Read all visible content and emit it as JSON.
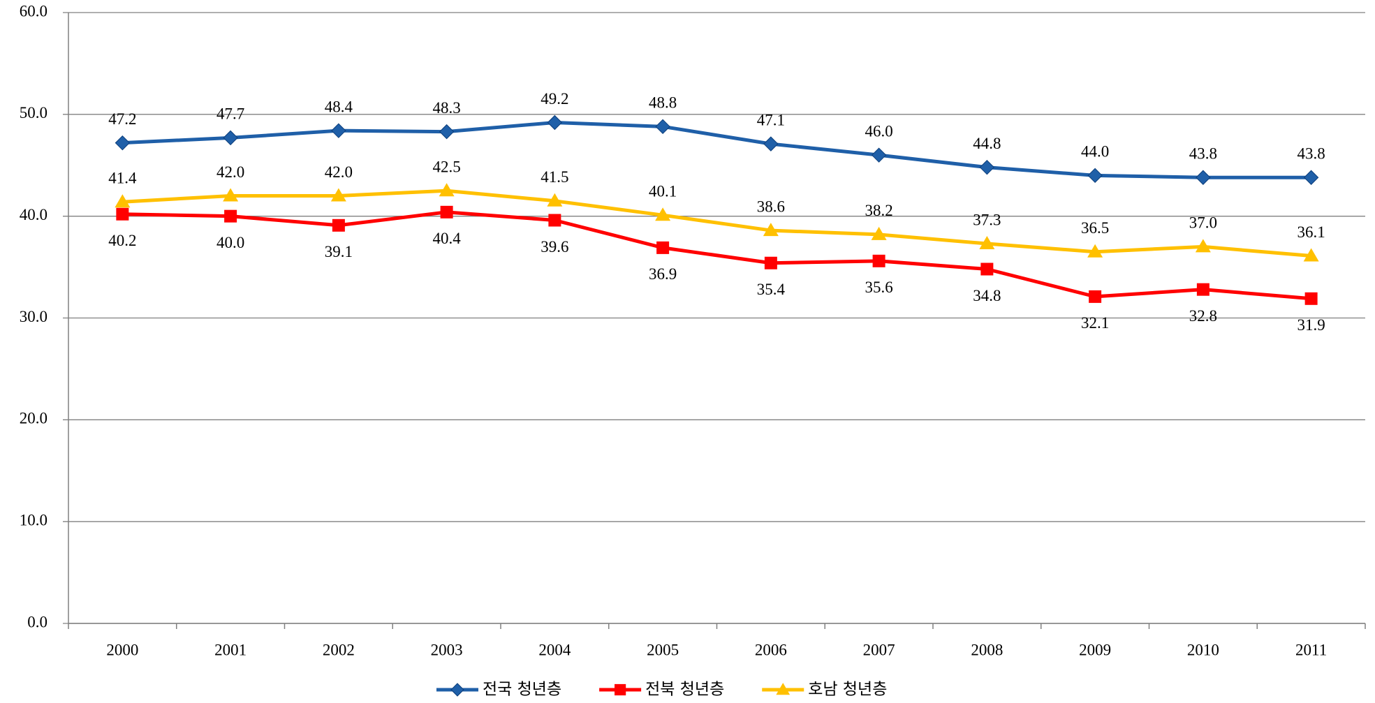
{
  "chart_data": {
    "type": "line",
    "categories": [
      "2000",
      "2001",
      "2002",
      "2003",
      "2004",
      "2005",
      "2006",
      "2007",
      "2008",
      "2009",
      "2010",
      "2011"
    ],
    "series": [
      {
        "name": "전국 청년층",
        "color": "#1f5fa8",
        "marker": "diamond",
        "label_position": "above",
        "values": [
          47.2,
          47.7,
          48.4,
          48.3,
          49.2,
          48.8,
          47.1,
          46.0,
          44.8,
          44.0,
          43.8,
          43.8
        ],
        "value_labels": [
          "47.2",
          "47.7",
          "48.4",
          "48.3",
          "49.2",
          "48.8",
          "47.1",
          "46.0",
          "44.8",
          "44.0",
          "43.8",
          "43.8"
        ]
      },
      {
        "name": "전북 청년층",
        "color": "#ff0000",
        "marker": "square",
        "label_position": "below",
        "values": [
          40.2,
          40.0,
          39.1,
          40.4,
          39.6,
          36.9,
          35.4,
          35.6,
          34.8,
          32.1,
          32.8,
          31.9
        ],
        "value_labels": [
          "40.2",
          "40.0",
          "39.1",
          "40.4",
          "39.6",
          "36.9",
          "35.4",
          "35.6",
          "34.8",
          "32.1",
          "32.8",
          "31.9"
        ]
      },
      {
        "name": "호남 청년층",
        "color": "#ffc000",
        "marker": "triangle",
        "label_position": "above",
        "values": [
          41.4,
          42.0,
          42.0,
          42.5,
          41.5,
          40.1,
          38.6,
          38.2,
          37.3,
          36.5,
          37.0,
          36.1
        ],
        "value_labels": [
          "41.4",
          "42.0",
          "42.0",
          "42.5",
          "41.5",
          "40.1",
          "38.6",
          "38.2",
          "37.3",
          "36.5",
          "37.0",
          "36.1"
        ]
      }
    ],
    "ylim": [
      0,
      60
    ],
    "yticks": [
      {
        "value": 0,
        "label": "0.0"
      },
      {
        "value": 10,
        "label": "10.0"
      },
      {
        "value": 20,
        "label": "20.0"
      },
      {
        "value": 30,
        "label": "30.0"
      },
      {
        "value": 40,
        "label": "40.0"
      },
      {
        "value": 50,
        "label": "50.0"
      },
      {
        "value": 60,
        "label": "60.0"
      }
    ],
    "grid": true,
    "legend": "bottom"
  }
}
